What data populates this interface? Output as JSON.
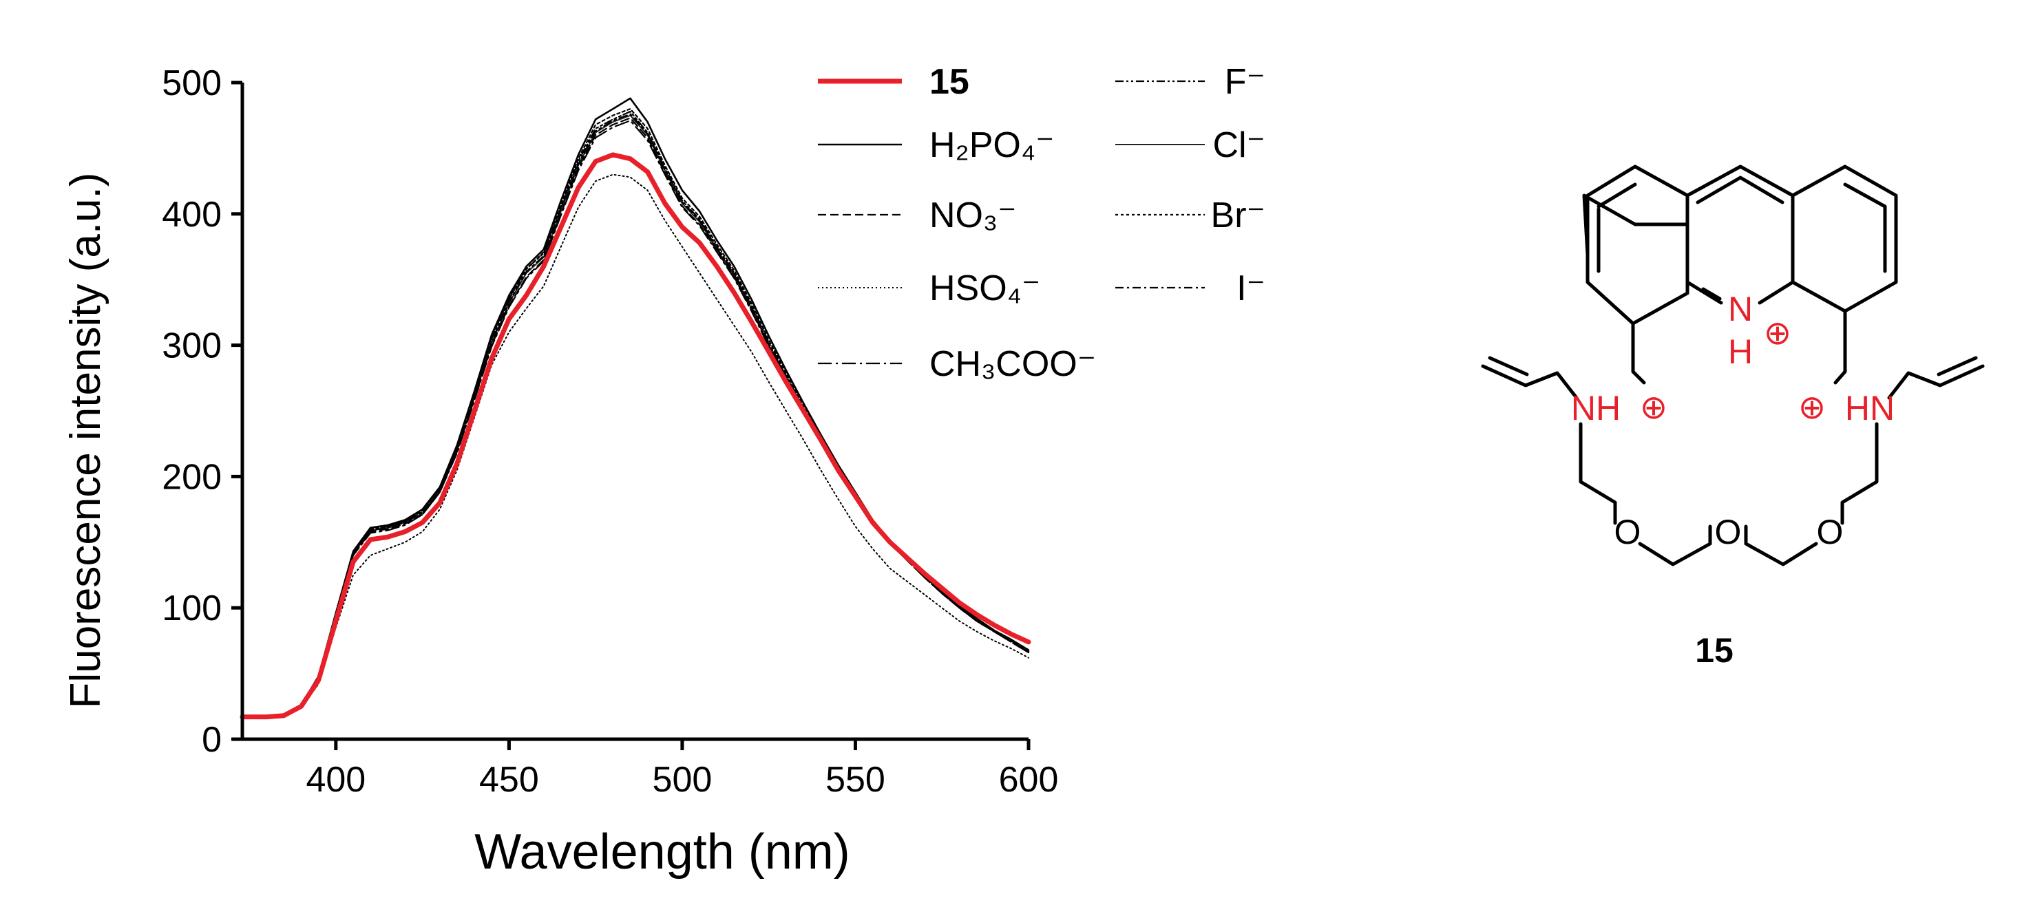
{
  "chart_data": {
    "type": "line",
    "title": "",
    "xlabel": "Wavelength (nm)",
    "ylabel": "Fluorescence intensity (a.u.)",
    "xlim": [
      373,
      600
    ],
    "ylim": [
      0,
      500
    ],
    "xticks": [
      400,
      450,
      500,
      550,
      600
    ],
    "yticks": [
      0,
      100,
      200,
      300,
      400,
      500
    ],
    "x": [
      373,
      380,
      385,
      390,
      395,
      400,
      405,
      410,
      415,
      420,
      425,
      430,
      435,
      440,
      445,
      450,
      455,
      460,
      465,
      470,
      475,
      480,
      485,
      490,
      495,
      500,
      505,
      510,
      515,
      520,
      525,
      530,
      535,
      540,
      545,
      550,
      555,
      560,
      565,
      570,
      575,
      580,
      585,
      590,
      595,
      600
    ],
    "series": [
      {
        "name": "15",
        "style": "bold-red",
        "values": [
          17,
          17,
          18,
          25,
          45,
          90,
          135,
          152,
          154,
          158,
          165,
          180,
          210,
          250,
          290,
          320,
          338,
          360,
          390,
          420,
          440,
          445,
          442,
          432,
          408,
          390,
          378,
          360,
          340,
          318,
          295,
          272,
          250,
          228,
          205,
          185,
          165,
          150,
          138,
          126,
          115,
          104,
          95,
          87,
          80,
          74
        ]
      },
      {
        "name": "F⁻",
        "style": "dash-dot-dot",
        "values": [
          17,
          17,
          18,
          26,
          48,
          95,
          142,
          160,
          162,
          166,
          173,
          190,
          222,
          262,
          305,
          335,
          358,
          370,
          405,
          440,
          465,
          472,
          478,
          462,
          435,
          410,
          396,
          375,
          355,
          330,
          302,
          277,
          252,
          230,
          207,
          186,
          166,
          150,
          137,
          124,
          112,
          101,
          91,
          83,
          76,
          68
        ]
      },
      {
        "name": "H₂PO₄⁻",
        "style": "solid",
        "values": [
          17,
          17,
          18,
          26,
          48,
          96,
          143,
          161,
          163,
          167,
          175,
          192,
          224,
          265,
          308,
          338,
          360,
          373,
          410,
          445,
          472,
          480,
          488,
          470,
          442,
          418,
          402,
          380,
          360,
          335,
          307,
          281,
          256,
          232,
          209,
          188,
          167,
          151,
          138,
          125,
          113,
          102,
          92,
          83,
          75,
          67
        ]
      },
      {
        "name": "Cl⁻",
        "style": "solid-thin",
        "values": [
          17,
          17,
          18,
          26,
          47,
          94,
          141,
          159,
          161,
          165,
          172,
          189,
          220,
          260,
          302,
          332,
          355,
          367,
          402,
          437,
          462,
          470,
          475,
          460,
          433,
          408,
          394,
          373,
          353,
          328,
          300,
          275,
          251,
          229,
          206,
          185,
          166,
          150,
          137,
          124,
          112,
          101,
          91,
          82,
          75,
          67
        ]
      },
      {
        "name": "NO₃⁻",
        "style": "dashed",
        "values": [
          17,
          17,
          18,
          26,
          47,
          94,
          140,
          158,
          160,
          164,
          171,
          188,
          219,
          259,
          300,
          330,
          352,
          365,
          400,
          435,
          460,
          468,
          473,
          458,
          431,
          406,
          392,
          372,
          352,
          327,
          300,
          275,
          251,
          228,
          206,
          185,
          165,
          149,
          136,
          123,
          111,
          100,
          90,
          82,
          74,
          66
        ]
      },
      {
        "name": "Br⁻",
        "style": "dotted",
        "values": [
          17,
          17,
          18,
          26,
          48,
          95,
          142,
          160,
          162,
          166,
          174,
          191,
          223,
          263,
          306,
          336,
          358,
          371,
          407,
          442,
          468,
          475,
          480,
          465,
          437,
          412,
          398,
          377,
          357,
          332,
          304,
          279,
          254,
          231,
          208,
          187,
          167,
          151,
          138,
          125,
          113,
          102,
          92,
          83,
          76,
          68
        ]
      },
      {
        "name": "HSO₄⁻",
        "style": "fine-dotted",
        "values": [
          17,
          17,
          18,
          24,
          42,
          85,
          125,
          140,
          145,
          150,
          158,
          175,
          205,
          245,
          285,
          310,
          328,
          345,
          375,
          405,
          425,
          430,
          428,
          418,
          395,
          375,
          355,
          335,
          315,
          295,
          272,
          250,
          228,
          205,
          183,
          162,
          145,
          130,
          120,
          110,
          100,
          90,
          82,
          75,
          69,
          62
        ]
      },
      {
        "name": "I⁻",
        "style": "dash-dot",
        "values": [
          17,
          17,
          18,
          26,
          47,
          94,
          141,
          159,
          161,
          165,
          173,
          190,
          221,
          261,
          303,
          333,
          356,
          368,
          404,
          438,
          463,
          471,
          476,
          461,
          434,
          409,
          395,
          374,
          354,
          329,
          301,
          276,
          252,
          229,
          207,
          186,
          166,
          150,
          137,
          124,
          112,
          101,
          91,
          83,
          75,
          67
        ]
      },
      {
        "name": "CH₃COO⁻",
        "style": "long-dash-dot",
        "values": [
          17,
          17,
          18,
          26,
          47,
          93,
          140,
          157,
          159,
          163,
          171,
          188,
          218,
          258,
          299,
          329,
          351,
          364,
          399,
          433,
          458,
          466,
          471,
          456,
          430,
          405,
          391,
          371,
          351,
          326,
          299,
          274,
          250,
          228,
          205,
          184,
          165,
          149,
          136,
          123,
          111,
          100,
          90,
          82,
          74,
          66
        ]
      }
    ],
    "legend": {
      "placement": "top-right-inside",
      "entries": [
        {
          "label": "15",
          "column": 1
        },
        {
          "label": "F⁻",
          "column": 2
        },
        {
          "label": "H₂PO₄⁻",
          "column": 1
        },
        {
          "label": "Cl⁻",
          "column": 2
        },
        {
          "label": "NO₃⁻",
          "column": 1
        },
        {
          "label": "Br⁻",
          "column": 2
        },
        {
          "label": "HSO₄⁻",
          "column": 1
        },
        {
          "label": "I⁻",
          "column": 2
        },
        {
          "label": "CH₃COO⁻",
          "column": 1
        }
      ]
    }
  },
  "structure": {
    "compound_label": "15",
    "labels": {
      "n_ring": "N",
      "h_ring": "H",
      "plus": "⊕",
      "nh_left": "NH",
      "hn_right": "HN",
      "oxygen": "O"
    },
    "colors": {
      "charged": "#e8202a",
      "bonds": "#000000"
    }
  },
  "colors": {
    "highlight": "#e8202a",
    "axis": "#000000"
  }
}
